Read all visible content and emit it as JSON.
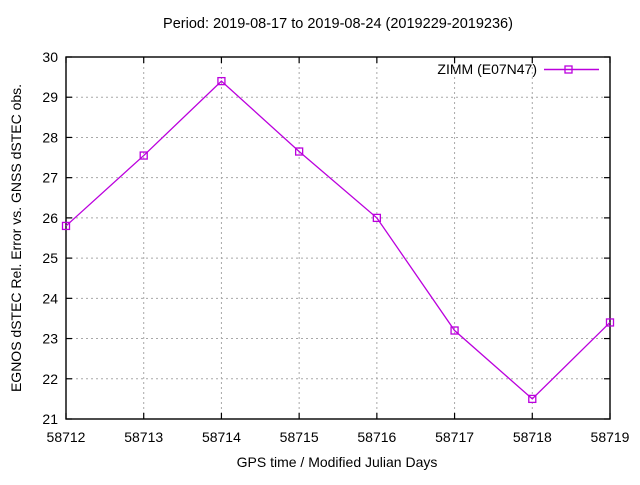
{
  "window": {
    "background": "#ffffff"
  },
  "chart_data": {
    "type": "line",
    "title": "Period: 2019-08-17 to 2019-08-24 (2019229-2019236)",
    "xlabel": "GPS time / Modified Julian Days",
    "ylabel": "EGNOS dSTEC Rel. Error vs. GNSS dSTEC obs.",
    "x": [
      58712,
      58713,
      58714,
      58715,
      58716,
      58717,
      58718,
      58719
    ],
    "series": [
      {
        "name": "ZIMM (E07N47)",
        "color": "#BB00DD",
        "marker": "open-square",
        "values": [
          25.8,
          27.55,
          29.4,
          27.65,
          26.0,
          23.2,
          21.5,
          23.4
        ]
      }
    ],
    "xlim": [
      58712,
      58719
    ],
    "ylim": [
      21,
      30
    ],
    "x_ticks": [
      58712,
      58713,
      58714,
      58715,
      58716,
      58717,
      58718,
      58719
    ],
    "y_ticks": [
      21,
      22,
      23,
      24,
      25,
      26,
      27,
      28,
      29,
      30
    ],
    "grid": "dashed",
    "grid_color": "#a8a8a8",
    "axis_color": "#000000",
    "text_color": "#000000",
    "legend_position": "top-right-inside"
  }
}
